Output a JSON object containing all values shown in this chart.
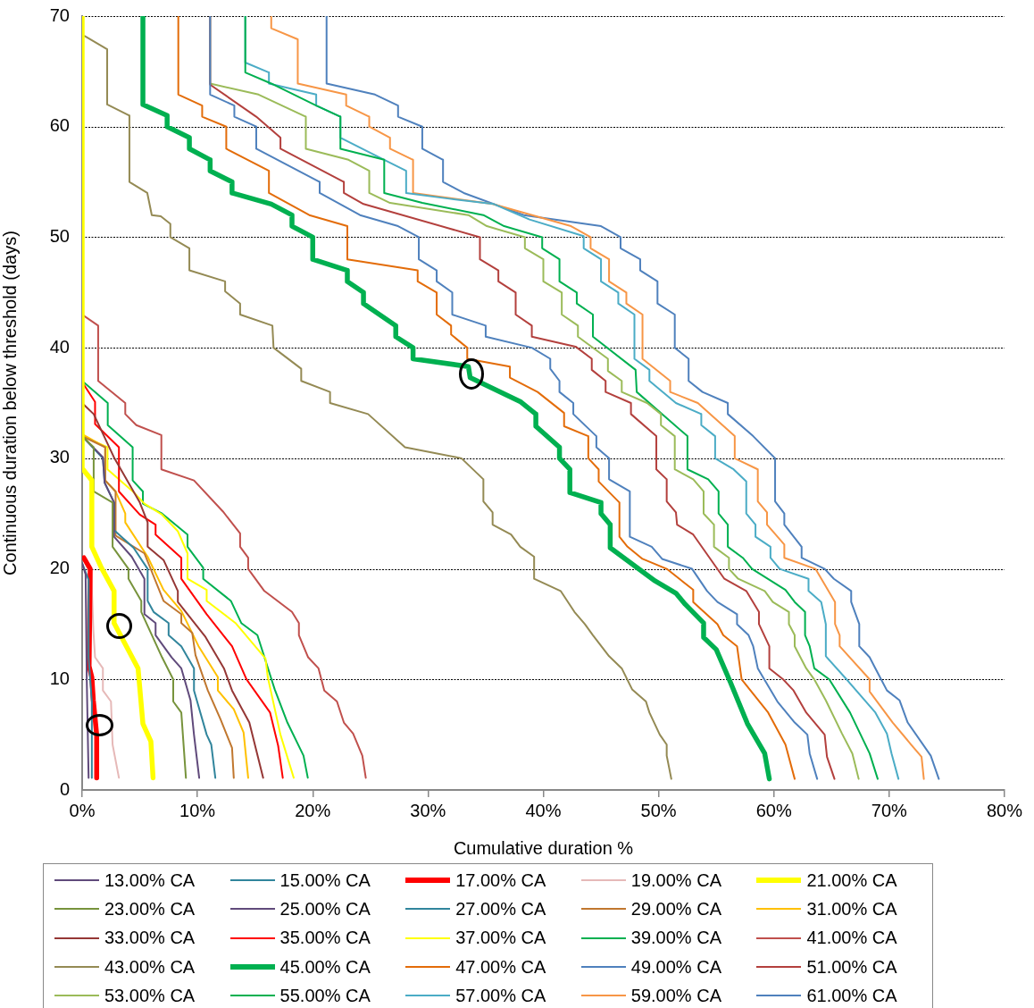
{
  "chart_data": {
    "type": "line",
    "xlabel": "Cumulative duration %",
    "ylabel": "Continuous duration below threshold (days)",
    "xlim": [
      0,
      80
    ],
    "ylim": [
      0,
      70
    ],
    "xticks": [
      {
        "value": 0,
        "label": "0%"
      },
      {
        "value": 10,
        "label": "10%"
      },
      {
        "value": 20,
        "label": "20%"
      },
      {
        "value": 30,
        "label": "30%"
      },
      {
        "value": 40,
        "label": "40%"
      },
      {
        "value": 50,
        "label": "50%"
      },
      {
        "value": 60,
        "label": "60%"
      },
      {
        "value": 70,
        "label": "70%"
      },
      {
        "value": 80,
        "label": "80%"
      }
    ],
    "yticks": [
      0,
      10,
      20,
      30,
      40,
      50,
      60,
      70
    ],
    "grid": "y",
    "legend": "bottom",
    "series": [
      {
        "name": "13.00% CA",
        "color": "#604a7b",
        "x": [
          0,
          0.3,
          0.4,
          0.56
        ],
        "values": [
          20.5,
          19.5,
          10,
          1.1
        ]
      },
      {
        "name": "15.00% CA",
        "color": "#31859c",
        "x": [
          0,
          0.56,
          0.56,
          0.84,
          0.84
        ],
        "values": [
          20.5,
          19,
          12,
          8,
          1.1
        ]
      },
      {
        "name": "17.00% CA",
        "color": "#ff0000",
        "x": [
          0.14,
          0.7,
          0.6,
          0.84,
          0.97,
          1.26,
          1.26
        ],
        "values": [
          21,
          20,
          11.2,
          10.2,
          8.1,
          5,
          1.1
        ]
      },
      {
        "name": "19.00% CA",
        "color": "#e6b9b8",
        "x": [
          0,
          0.78,
          0.97,
          1.12,
          1.8,
          1.8,
          2.5,
          2.64,
          3.19
        ],
        "values": [
          21,
          20,
          14.5,
          12,
          11,
          9,
          8,
          4.1,
          1.1
        ]
      },
      {
        "name": "21.00% CA",
        "color": "#ffff00",
        "x": [
          0,
          0,
          0.84,
          0.84,
          1.67,
          2.77,
          2.77,
          4.85,
          5.27,
          5.96,
          6.15
        ],
        "values": [
          70,
          29.1,
          28,
          22,
          20.1,
          18,
          15.1,
          11,
          6,
          4.4,
          1.1
        ]
      },
      {
        "name": "23.00% CA",
        "color": "#77933c",
        "x": [
          0,
          1.0,
          1.0,
          2.64,
          2.64,
          4.02,
          4.02,
          5.13,
          5.13,
          6.93,
          7.9,
          7.9,
          8.6,
          9.0
        ],
        "values": [
          32,
          31,
          27,
          26,
          22,
          20,
          19.1,
          17.1,
          16.1,
          12,
          10,
          8,
          7,
          1.1
        ]
      },
      {
        "name": "25.00% CA",
        "color": "#604a7b",
        "x": [
          0,
          1.8,
          1.95,
          2.77,
          2.77,
          4.3,
          5.4,
          5.4,
          6.37,
          6.37,
          7.76,
          8.6,
          9.4,
          9.7,
          10.15
        ],
        "values": [
          32,
          30.1,
          27.8,
          26,
          22.9,
          21.1,
          19.1,
          15.9,
          15.1,
          14,
          12,
          11,
          8.1,
          5,
          1.1
        ]
      },
      {
        "name": "27.00% CA",
        "color": "#31859c",
        "x": [
          0,
          1.8,
          1.95,
          2.77,
          2.77,
          4.46,
          5.68,
          5.68,
          6.2,
          7.5,
          7.5,
          8.6,
          9.7,
          9.7,
          10.8,
          11.2,
          11.55
        ],
        "values": [
          32,
          30,
          27.8,
          26,
          23.5,
          21.9,
          20,
          17.1,
          16.1,
          15.1,
          14,
          13,
          11,
          9,
          5,
          4.1,
          1.1
        ]
      },
      {
        "name": "29.00% CA",
        "color": "#c0772f",
        "x": [
          0,
          2.0,
          2.0,
          2.9,
          2.9,
          5.4,
          7.06,
          8.6,
          8.6,
          9.55,
          9.83,
          10.9,
          12.0,
          13.0,
          13.15
        ],
        "values": [
          32,
          31,
          28,
          27,
          23,
          21.4,
          17.1,
          15.9,
          15.1,
          14.2,
          12.2,
          9,
          6.4,
          3.8,
          1.1
        ]
      },
      {
        "name": "31.00% CA",
        "color": "#ffc000",
        "x": [
          0.14,
          2.0,
          2.0,
          2.9,
          3.74,
          3.74,
          5.68,
          7.06,
          8.6,
          10.1,
          11.77,
          11.77,
          13.15,
          14.0,
          14.4
        ],
        "values": [
          32.1,
          31,
          28,
          27,
          25,
          24.2,
          21.1,
          18.1,
          16.2,
          13,
          10.2,
          9,
          7.3,
          5.2,
          1.1
        ]
      },
      {
        "name": "33.00% CA",
        "color": "#953735",
        "x": [
          0,
          1.0,
          2.8,
          5.0,
          5.68,
          5.68,
          7.06,
          8.3,
          8.3,
          10.66,
          12.3,
          13.0,
          14.5,
          15.7
        ],
        "values": [
          35,
          34,
          30,
          26,
          24.2,
          22,
          20.8,
          18,
          17,
          13.9,
          11,
          9,
          6.1,
          1.1
        ]
      },
      {
        "name": "35.00% CA",
        "color": "#ff0000",
        "x": [
          0,
          1.12,
          1.12,
          3.19,
          3.19,
          5.0,
          6.37,
          6.37,
          8.6,
          8.6,
          10.8,
          13.0,
          14.26,
          16.3,
          17.0,
          17.4
        ],
        "values": [
          36.9,
          35.1,
          33.1,
          31,
          27,
          24.9,
          24,
          23.1,
          21,
          19.1,
          15.9,
          13,
          10,
          7,
          4,
          1.1
        ]
      },
      {
        "name": "37.00% CA",
        "color": "#ffff00",
        "x": [
          0,
          2.2,
          2.2,
          4.4,
          5.4,
          6.93,
          8.3,
          9.14,
          9.14,
          10.8,
          10.8,
          13.3,
          15.9,
          16.1,
          17.2,
          18.35
        ],
        "values": [
          32,
          31,
          29,
          27,
          25.9,
          24.9,
          23.4,
          21.4,
          19.1,
          18.1,
          17.1,
          15.1,
          11.9,
          10.2,
          5,
          1.1
        ]
      },
      {
        "name": "39.00% CA",
        "color": "#00b050",
        "x": [
          0,
          2.22,
          2.22,
          4.38,
          4.38,
          5.27,
          5.27,
          6.93,
          9.14,
          9.14,
          10.5,
          10.5,
          12.9,
          13.8,
          15.2,
          16.7,
          17.8,
          19.2,
          19.57
        ],
        "values": [
          37,
          35,
          33,
          31,
          28,
          27,
          25.9,
          25,
          23.1,
          22,
          20.1,
          19.1,
          17.1,
          15.1,
          14,
          9.1,
          6.1,
          3.1,
          1.1
        ]
      },
      {
        "name": "41.00% CA",
        "color": "#c0504d",
        "x": [
          0,
          1.39,
          1.39,
          3.74,
          3.74,
          4.7,
          6.87,
          6.87,
          9.7,
          12.2,
          13.7,
          13.7,
          14.4,
          14.4,
          15.8,
          18.2,
          18.8,
          18.8,
          19.6,
          20.5,
          21.0,
          22.1,
          22.7,
          23.5,
          24.3,
          24.6
        ],
        "values": [
          43,
          42,
          37,
          35,
          34,
          33,
          32.1,
          29,
          28,
          25.2,
          23.2,
          22,
          21,
          20,
          18,
          16.1,
          15.1,
          14,
          12,
          11,
          9,
          8,
          6.1,
          5.1,
          3.1,
          1.1
        ]
      },
      {
        "name": "43.00% CA",
        "color": "#948a54",
        "x": [
          0.23,
          2.17,
          2.17,
          4.1,
          4.1,
          5.65,
          6.04,
          6.82,
          7.65,
          7.65,
          9.3,
          9.3,
          12.4,
          12.4,
          13.7,
          13.7,
          16.5,
          16.6,
          19.0,
          19.0,
          21.5,
          21.5,
          24.8,
          28.0,
          32.9,
          34.8,
          34.8,
          35.6,
          35.6,
          37.2,
          38.0,
          39.2,
          39.2,
          41.5,
          42.7,
          43.6,
          44.3,
          45.7,
          46.8,
          47.7,
          48.9,
          49.2,
          50.1,
          50.7,
          50.7,
          51.1
        ],
        "values": [
          68.2,
          67,
          62,
          61,
          55,
          54,
          52,
          51.9,
          51.2,
          50,
          49,
          47,
          46,
          45.1,
          44,
          43,
          42,
          40,
          38.1,
          37,
          36,
          35,
          34,
          31,
          30,
          28.1,
          26.1,
          25.1,
          24,
          23.1,
          22,
          21.1,
          19.1,
          18,
          16.1,
          15,
          14,
          12.1,
          11,
          9.1,
          8,
          7,
          5,
          4.1,
          3.1,
          1.0
        ]
      },
      {
        "name": "45.00% CA",
        "color": "#00b050",
        "x": [
          5.27,
          5.27,
          7.37,
          7.37,
          9.3,
          9.3,
          11.1,
          11.1,
          13.0,
          13.0,
          16.4,
          18.2,
          18.2,
          20.0,
          20.0,
          23.0,
          23.0,
          24.4,
          24.4,
          27.2,
          27.2,
          28.7,
          28.7,
          33.5,
          33.65,
          38.05,
          39.35,
          39.35,
          41.4,
          41.4,
          42.3,
          42.3,
          45.0,
          45.0,
          45.8,
          45.8,
          49.7,
          51.5,
          52.3,
          53.9,
          53.9,
          55.0,
          56.2,
          57.7,
          59.2,
          59.6
        ],
        "values": [
          70,
          62,
          61,
          60,
          59,
          58,
          57,
          56,
          55,
          54,
          53,
          52,
          51,
          50,
          48,
          47,
          46,
          45,
          44,
          42,
          41,
          40,
          39,
          38.3,
          37.3,
          35.1,
          34,
          32.9,
          31,
          30,
          29,
          26.9,
          26,
          25,
          24,
          21.9,
          18.9,
          17.8,
          16.8,
          15.1,
          13.8,
          12.7,
          9.8,
          6.0,
          3.3,
          1.0
        ]
      },
      {
        "name": "47.00% CA",
        "color": "#e36c09",
        "x": [
          8.34,
          8.34,
          10.41,
          10.41,
          12.5,
          12.5,
          16.2,
          16.2,
          19.7,
          23.0,
          23.0,
          29.1,
          29.1,
          30.75,
          30.75,
          32.0,
          32.0,
          33.4,
          33.4,
          37.1,
          37.1,
          39.5,
          41.8,
          41.8,
          43.9,
          43.9,
          44.8,
          44.8,
          46.6,
          46.6,
          47.3,
          48.6,
          50.7,
          53.0,
          53.0,
          55.1,
          55.6,
          56.8,
          57.2,
          59.5,
          61.0,
          61.8
        ],
        "values": [
          70,
          62.9,
          61.9,
          60.9,
          60,
          58,
          56,
          54,
          52,
          51,
          48,
          47,
          46,
          45,
          43,
          42,
          41.2,
          40,
          39,
          38.3,
          37.3,
          36,
          34.1,
          32.9,
          32,
          30,
          29,
          27.9,
          26,
          22.9,
          22,
          20.9,
          20,
          18.1,
          17,
          15,
          14,
          13,
          10,
          7,
          4.1,
          1.0
        ]
      },
      {
        "name": "49.00% CA",
        "color": "#4f81bd",
        "x": [
          11.1,
          11.1,
          13.2,
          13.2,
          15.1,
          15.1,
          20.6,
          20.6,
          24.1,
          27.4,
          29.2,
          29.2,
          30.75,
          30.75,
          32.1,
          32.1,
          35.0,
          35.0,
          39.0,
          40.6,
          40.6,
          41.4,
          41.4,
          42.6,
          42.6,
          44.6,
          44.6,
          45.7,
          45.7,
          47.5,
          47.5,
          49.4,
          50.3,
          52.9,
          54.2,
          55.1,
          56.8,
          56.8,
          57.8,
          58.2,
          58.6,
          60.3,
          61.8,
          62.9,
          63.1,
          63.75
        ],
        "values": [
          70,
          62.9,
          61.9,
          60.9,
          60,
          58,
          55,
          54,
          52,
          51,
          50,
          48,
          47,
          46,
          45,
          43,
          42,
          41,
          40,
          39,
          38.1,
          37,
          36,
          35,
          34,
          32,
          31,
          30,
          28.1,
          27,
          22.9,
          22,
          20.9,
          20,
          18,
          17,
          15.9,
          15,
          14,
          13,
          11,
          8,
          6.1,
          5,
          3.3,
          1.0
        ]
      },
      {
        "name": "51.00% CA",
        "color": "#b3403d",
        "x": [
          11.1,
          11.1,
          15.1,
          17.2,
          17.2,
          22.7,
          22.7,
          24.4,
          34.5,
          34.5,
          36.1,
          36.1,
          37.6,
          37.6,
          39.0,
          39.0,
          42.8,
          44.2,
          44.2,
          45.4,
          45.4,
          47.6,
          47.6,
          49.8,
          49.8,
          50.7,
          50.7,
          51.5,
          51.6,
          53.0,
          55.7,
          57.6,
          58.7,
          58.7,
          59.6,
          59.6,
          60.8,
          61.7,
          62.8,
          64.4,
          64.6,
          65.25
        ],
        "values": [
          70,
          63.8,
          60.9,
          59,
          58,
          55,
          54,
          53,
          50,
          48,
          47,
          46,
          45,
          43,
          42,
          41,
          40.1,
          39,
          38,
          37,
          36,
          35,
          34,
          32,
          29,
          28.1,
          26.1,
          25.1,
          24,
          23.1,
          19.1,
          18,
          16.1,
          15,
          13,
          11,
          10,
          9,
          7,
          5,
          3,
          1.0
        ]
      },
      {
        "name": "53.00% CA",
        "color": "#9bbb59",
        "x": [
          11.1,
          11.1,
          15.3,
          19.4,
          19.4,
          23.1,
          24.9,
          24.9,
          26.7,
          33.5,
          35.1,
          38.4,
          38.4,
          40.0,
          40.0,
          41.6,
          41.6,
          43.0,
          43.0,
          45.6,
          45.6,
          46.8,
          46.8,
          49.0,
          50.2,
          50.2,
          51.4,
          51.4,
          53.0,
          53.9,
          53.9,
          54.8,
          54.8,
          56.1,
          56.1,
          56.9,
          59.2,
          59.9,
          61.3,
          61.3,
          61.8,
          61.8,
          62.8,
          63.5,
          64.5,
          65.9,
          66.8,
          67.35
        ],
        "values": [
          70,
          63.9,
          62.9,
          60.9,
          58,
          57,
          56,
          54,
          53.1,
          52,
          51,
          50,
          49,
          48,
          46,
          45,
          43,
          42,
          41,
          39,
          37.9,
          37,
          36,
          35,
          34,
          33,
          32,
          29,
          28.1,
          27,
          25,
          24,
          22,
          21,
          20,
          19.1,
          18,
          17,
          16.1,
          15,
          14,
          13,
          11,
          10,
          8.1,
          5.1,
          3.3,
          1.0
        ]
      },
      {
        "name": "55.00% CA",
        "color": "#00b050",
        "x": [
          14.15,
          14.15,
          16.4,
          20.3,
          22.4,
          22.4,
          26.2,
          26.2,
          29.5,
          34.8,
          36.6,
          39.9,
          39.9,
          41.4,
          41.4,
          42.9,
          42.9,
          44.3,
          44.3,
          48.0,
          48.1,
          52.5,
          52.5,
          54.3,
          55.2,
          55.2,
          56.0,
          56.0,
          57.3,
          58.1,
          61.0,
          61.8,
          62.7,
          62.7,
          63.1,
          63.5,
          64.8,
          66.6,
          68.3,
          69.0
        ],
        "values": [
          70,
          64.9,
          63.9,
          61.9,
          60.9,
          58,
          57,
          54,
          53.1,
          52,
          51,
          50,
          49,
          48,
          46,
          45,
          44,
          43,
          41,
          38,
          36,
          32,
          29,
          28.1,
          27,
          25,
          24,
          22,
          21,
          20,
          18.1,
          17,
          16.1,
          14,
          13,
          11,
          10,
          7,
          3.3,
          1.0
        ]
      },
      {
        "name": "57.00% CA",
        "color": "#4bacc6",
        "x": [
          14.15,
          14.15,
          16.2,
          16.2,
          20.3,
          20.3,
          22.4,
          22.4,
          26.2,
          28.1,
          28.1,
          31.7,
          35.7,
          38.8,
          43.5,
          43.5,
          45.0,
          45.0,
          46.5,
          46.5,
          47.9,
          47.9,
          49.2,
          49.2,
          51.5,
          53.7,
          53.7,
          54.9,
          54.9,
          56.5,
          57.6,
          57.6,
          58.4,
          58.4,
          59.7,
          59.7,
          60.5,
          63.0,
          63.0,
          64.1,
          64.5,
          64.5,
          66.3,
          68.8,
          69.8,
          70.2,
          70.8
        ],
        "values": [
          70,
          65.8,
          64.9,
          63.9,
          62.9,
          61.9,
          60.9,
          59,
          57,
          56,
          54,
          53.5,
          53,
          51.6,
          50.1,
          49,
          48,
          46,
          45,
          44,
          43,
          39,
          38,
          37,
          35,
          34,
          33,
          32,
          30,
          29,
          27.9,
          25,
          24,
          22.9,
          22,
          21,
          20,
          19.1,
          18,
          17,
          15,
          12.1,
          10,
          7,
          5.1,
          3.3,
          1.0
        ]
      },
      {
        "name": "59.00% CA",
        "color": "#f79646",
        "x": [
          16.4,
          16.4,
          18.7,
          18.7,
          22.9,
          22.9,
          24.9,
          24.9,
          26.7,
          26.7,
          28.7,
          28.7,
          35.6,
          42.4,
          44.1,
          44.1,
          45.7,
          45.7,
          47.2,
          47.2,
          48.6,
          48.6,
          51.0,
          51.0,
          53.4,
          56.6,
          56.6,
          58.6,
          58.6,
          59.4,
          59.4,
          60.9,
          60.9,
          63.6,
          65.3,
          65.3,
          65.7,
          65.7,
          68.3,
          68.3,
          70.3,
          71.9,
          72.8,
          73.0
        ],
        "values": [
          70,
          68.9,
          67.9,
          63.9,
          62.9,
          61.9,
          60.9,
          60,
          59,
          58,
          57,
          54,
          53,
          51,
          50,
          49,
          48,
          46,
          45,
          44,
          43,
          39,
          37,
          36,
          35,
          32,
          30,
          29,
          26.1,
          25.1,
          24,
          22.2,
          21,
          20,
          17,
          15,
          14,
          13,
          10,
          8.9,
          6.1,
          4.1,
          3.0,
          1.0
        ]
      },
      {
        "name": "61.00% CA",
        "color": "#4f81bd",
        "x": [
          21.2,
          21.2,
          25.4,
          27.4,
          27.4,
          29.5,
          29.5,
          31.3,
          31.3,
          33.1,
          38.3,
          45.0,
          46.7,
          46.7,
          48.4,
          48.4,
          49.9,
          49.9,
          51.4,
          51.4,
          52.6,
          52.6,
          53.8,
          56.0,
          56.0,
          58.2,
          60.1,
          60.1,
          60.9,
          60.9,
          62.4,
          62.4,
          64.4,
          65.2,
          66.7,
          66.7,
          67.4,
          67.4,
          68.3,
          68.8,
          69.8,
          70.9,
          71.6,
          73.6,
          74.3
        ],
        "values": [
          70,
          63.9,
          62.9,
          61.9,
          60.9,
          60,
          58,
          57,
          55,
          54,
          52,
          51,
          50,
          49,
          48,
          47,
          46,
          44,
          43,
          40,
          39,
          37,
          36,
          35,
          34,
          32,
          30,
          26.1,
          25,
          24,
          22,
          21,
          20,
          19.1,
          18,
          17,
          15,
          13,
          12,
          11,
          9,
          8.1,
          6.1,
          3.1,
          1.0
        ]
      }
    ]
  }
}
